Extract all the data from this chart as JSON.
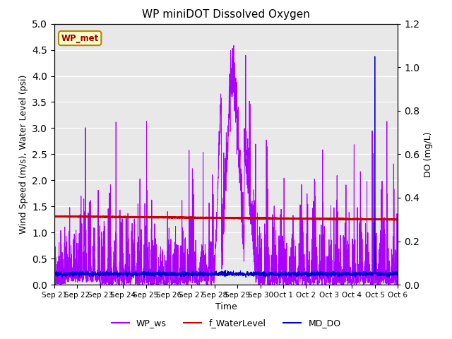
{
  "title": "WP miniDOT Dissolved Oxygen",
  "ylabel_left": "Wind Speed (m/s), Water Level (psi)",
  "ylabel_right": "DO (mg/L)",
  "xlabel": "Time",
  "ylim_left": [
    0.0,
    5.0
  ],
  "ylim_right": [
    0.0,
    1.2
  ],
  "yticks_left": [
    0.0,
    0.5,
    1.0,
    1.5,
    2.0,
    2.5,
    3.0,
    3.5,
    4.0,
    4.5,
    5.0
  ],
  "yticks_right": [
    0.0,
    0.2,
    0.4,
    0.6,
    0.8,
    1.0,
    1.2
  ],
  "xtick_labels": [
    "Sep 21",
    "Sep 22",
    "Sep 23",
    "Sep 24",
    "Sep 25",
    "Sep 26",
    "Sep 27",
    "Sep 28",
    "Sep 29",
    "Sep 30",
    "Oct 1",
    "Oct 2",
    "Oct 3",
    "Oct 4",
    "Oct 5",
    "Oct 6"
  ],
  "color_ws": "#AA00FF",
  "color_wl": "#CC0000",
  "color_do": "#0000CC",
  "bg_color": "#E8E8E8",
  "legend_label_ws": "WP_ws",
  "legend_label_wl": "f_WaterLevel",
  "legend_label_do": "MD_DO",
  "annotation_text": "WP_met",
  "annotation_bg": "#FFFFCC",
  "annotation_border": "#AA8800"
}
